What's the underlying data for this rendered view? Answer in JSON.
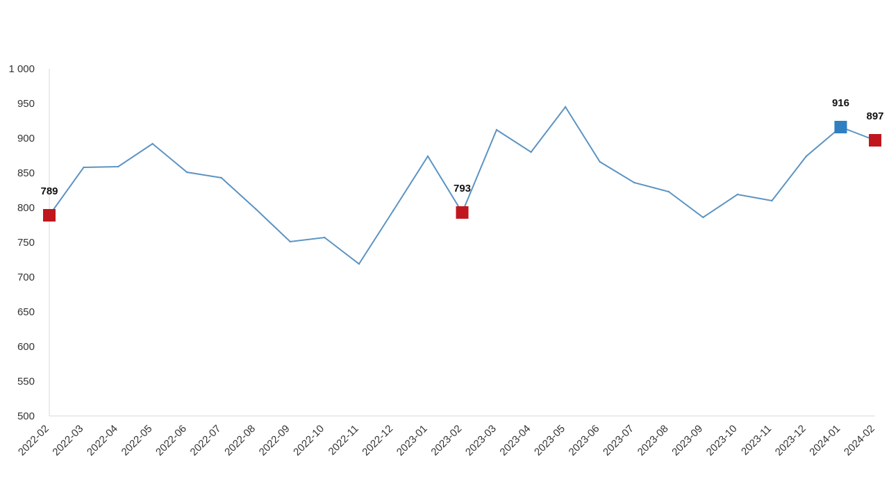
{
  "chart_data": {
    "type": "line",
    "title": "",
    "xlabel": "",
    "ylabel": "",
    "ylim": [
      500,
      1000
    ],
    "yticks": [
      500,
      550,
      600,
      650,
      700,
      750,
      800,
      850,
      900,
      950,
      1000
    ],
    "ytick_labels": [
      "500",
      "550",
      "600",
      "650",
      "700",
      "750",
      "800",
      "850",
      "900",
      "950",
      "1 000"
    ],
    "categories": [
      "2022-02",
      "2022-03",
      "2022-04",
      "2022-05",
      "2022-06",
      "2022-07",
      "2022-08",
      "2022-09",
      "2022-10",
      "2022-11",
      "2022-12",
      "2023-01",
      "2023-02",
      "2023-03",
      "2023-04",
      "2023-05",
      "2023-06",
      "2023-07",
      "2023-08",
      "2023-09",
      "2023-10",
      "2023-11",
      "2023-12",
      "2024-01",
      "2024-02"
    ],
    "series": [
      {
        "values": [
          789,
          858,
          859,
          892,
          851,
          843,
          798,
          751,
          757,
          719,
          796,
          874,
          793,
          912,
          880,
          945,
          866,
          836,
          823,
          786,
          819,
          810,
          874,
          916,
          897
        ],
        "color": "#5b93c2"
      }
    ],
    "highlights": [
      {
        "category": "2022-02",
        "label": "789",
        "marker_color": "#c0161e"
      },
      {
        "category": "2023-02",
        "label": "793",
        "marker_color": "#c0161e"
      },
      {
        "category": "2024-01",
        "label": "916",
        "marker_color": "#2f7fc1"
      },
      {
        "category": "2024-02",
        "label": "897",
        "marker_color": "#c0161e"
      }
    ],
    "grid": false,
    "axis_color": "#d9d9d9"
  }
}
